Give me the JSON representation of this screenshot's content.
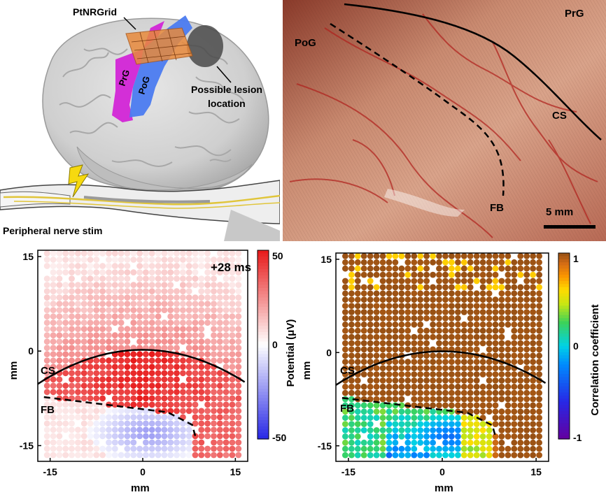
{
  "panel_a": {
    "label_grid": "PtNRGrid",
    "label_prg": "PrG",
    "label_pog": "PoG",
    "label_lesion_1": "Possible lesion",
    "label_lesion_2": "location",
    "label_stim": "Peripheral nerve stim"
  },
  "panel_b": {
    "label_prg": "PrG",
    "label_pog": "PoG",
    "label_cs": "CS",
    "label_fb": "FB",
    "scale_bar": "5 mm"
  },
  "chart_data": [
    {
      "type": "heatmap",
      "title": "+28 ms",
      "xlabel": "mm",
      "ylabel": "mm",
      "xlim": [
        -17,
        17
      ],
      "ylim": [
        -17.5,
        16
      ],
      "xticks": [
        -15,
        0,
        15
      ],
      "yticks": [
        15,
        0,
        -15
      ],
      "colorbar": {
        "label": "Potential (μV)",
        "ticks": [
          "50",
          "0",
          "-50"
        ],
        "range": [
          -50,
          50
        ]
      },
      "annotations": [
        "CS",
        "FB"
      ],
      "description_of_values": "Positive potentials (red, up to ~50 μV) between CS and FB; weak positive above CS; negative potentials (blue, ~-20 μV) below FB centred near x=0, y=-13"
    },
    {
      "type": "heatmap",
      "title": "",
      "xlabel": "mm",
      "ylabel": "mm",
      "xlim": [
        -17,
        17
      ],
      "ylim": [
        -17.5,
        16
      ],
      "xticks": [
        -15,
        0,
        15
      ],
      "yticks": [
        15,
        0,
        -15
      ],
      "colorbar": {
        "label": "Correlation coefficient",
        "ticks": [
          "1",
          "0",
          "-1"
        ],
        "range": [
          -1,
          1
        ]
      },
      "annotations": [
        "CS",
        "FB"
      ],
      "description_of_values": "Correlation near 1 (brown) above FB; below FB values drop to ~0.1-0.5 (cyan/green) with minimum ~-0.3 (blue/violet) near x=0, y=-13"
    }
  ]
}
